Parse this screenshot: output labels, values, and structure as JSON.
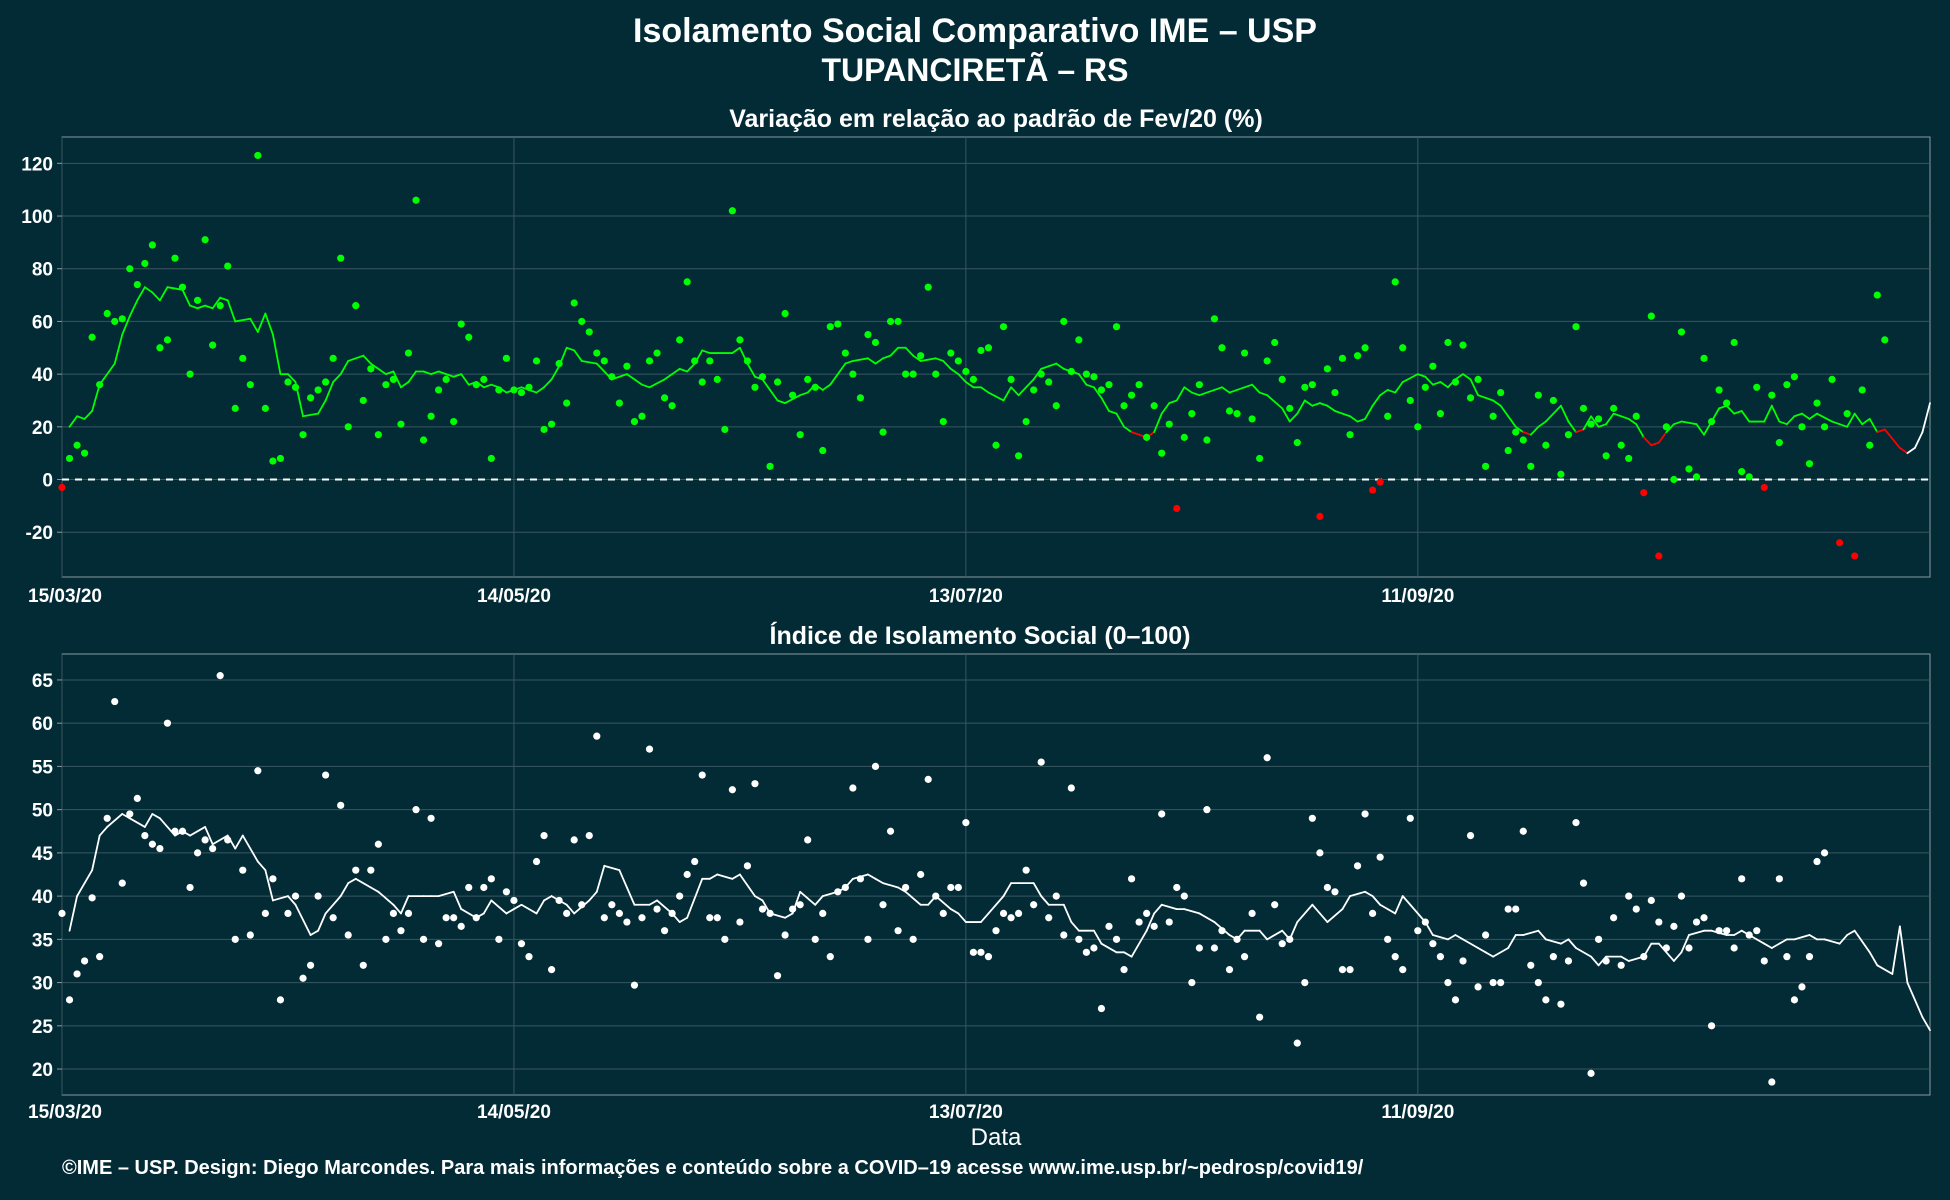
{
  "header": {
    "title": "Isolamento Social Comparativo IME – USP",
    "subtitle": "TUPANCIRETÃ – RS"
  },
  "footer": {
    "credit": "©IME – USP. Design: Diego Marcondes. Para mais informações e conteúdo sobre a COVID–19 acesse www.ime.usp.br/~pedrosp/covid19/"
  },
  "colors": {
    "background": "#022b36",
    "positive": "#00ff00",
    "negative": "#ff0000",
    "index": "#ffffff",
    "zero_line": "#ffffff",
    "frame": "#8a9aa0",
    "grid": "#3a5660"
  },
  "chart_data": [
    {
      "type": "scatter",
      "title": "Variação em relação ao padrão de Fev/20 (%)",
      "xlabel": "",
      "ylabel": "",
      "x_start": "15/03/20",
      "x_ticks": [
        "15/03/20",
        "14/05/20",
        "13/07/20",
        "11/09/20"
      ],
      "ylim": [
        -37,
        130
      ],
      "y_ticks": [
        -20,
        0,
        20,
        40,
        60,
        80,
        100,
        120
      ],
      "reference_line": 0,
      "grid": true,
      "series": [
        {
          "kind": "points",
          "color_rule": "green when >= 0, red when < 0",
          "values": [
            -3,
            8,
            13,
            10,
            54,
            36,
            63,
            60,
            61,
            80,
            74,
            82,
            89,
            50,
            53,
            84,
            73,
            40,
            68,
            91,
            51,
            66,
            81,
            27,
            46,
            36,
            123,
            27,
            7,
            8,
            37,
            35,
            17,
            31,
            34,
            37,
            46,
            84,
            20,
            66,
            30,
            42,
            17,
            36,
            38,
            21,
            48,
            106,
            15,
            24,
            34,
            38,
            22,
            59,
            54,
            36,
            38,
            8,
            34,
            46,
            34,
            33,
            35,
            45,
            19,
            21,
            44,
            29,
            67,
            60,
            56,
            48,
            45,
            39,
            29,
            43,
            22,
            24,
            45,
            48,
            31,
            28,
            53,
            75,
            45,
            37,
            45,
            38,
            19,
            102,
            53,
            45,
            35,
            39,
            5,
            37,
            63,
            32,
            17,
            38,
            35,
            11,
            58,
            59,
            48,
            40,
            31,
            55,
            52,
            18,
            60,
            60,
            40,
            40,
            47,
            73,
            40,
            22,
            48,
            45,
            41,
            38,
            49,
            50,
            13,
            58,
            38,
            9,
            22,
            34,
            40,
            37,
            28,
            60,
            41,
            53,
            40,
            39,
            34,
            36,
            58,
            28,
            32,
            36,
            16,
            28,
            10,
            21,
            -11,
            16,
            25,
            36,
            15,
            61,
            50,
            26,
            25,
            48,
            23,
            8,
            45,
            52,
            38,
            27,
            14,
            35,
            36,
            -14,
            42,
            33,
            46,
            17,
            47,
            50,
            -4,
            -1,
            24,
            75,
            50,
            30,
            20,
            35,
            43,
            25,
            52,
            37,
            51,
            31,
            38,
            5,
            24,
            33,
            11,
            18,
            15,
            5,
            32,
            13,
            30,
            2,
            17,
            58,
            27,
            21,
            23,
            9,
            27,
            13,
            8,
            24,
            -5,
            62,
            -29,
            20,
            0,
            56,
            4,
            1,
            46,
            22,
            34,
            29,
            52,
            3,
            1,
            35,
            -3,
            32,
            14,
            36,
            39,
            20,
            6,
            29,
            20,
            38,
            -24,
            25,
            -29,
            34,
            13,
            70,
            53
          ]
        },
        {
          "kind": "moving_average",
          "color_rule": "green when >= 20, red when < 20, white at the end",
          "values": [
            20,
            24,
            23,
            26,
            36,
            44,
            55,
            62,
            68,
            73,
            71,
            68,
            73,
            72,
            66,
            65,
            66,
            65,
            69,
            68,
            60,
            61,
            56,
            63,
            55,
            40,
            40,
            37,
            24,
            25,
            30,
            37,
            40,
            45,
            46,
            47,
            44,
            40,
            41,
            35,
            37,
            41,
            41,
            40,
            41,
            39,
            40,
            36,
            37,
            35,
            36,
            35,
            33,
            35,
            34,
            33,
            35,
            38,
            43,
            50,
            49,
            45,
            44,
            41,
            38,
            39,
            40,
            38,
            36,
            35,
            38,
            40,
            42,
            41,
            44,
            49,
            48,
            48,
            48,
            50,
            44,
            39,
            38,
            34,
            30,
            29,
            32,
            33,
            36,
            34,
            36,
            40,
            44,
            45,
            46,
            44,
            46,
            47,
            50,
            50,
            47,
            45,
            46,
            45,
            42,
            40,
            37,
            35,
            35,
            33,
            30,
            35,
            32,
            35,
            38,
            42,
            43,
            44,
            42,
            40,
            36,
            35,
            31,
            26,
            25,
            20,
            18,
            16,
            18,
            25,
            29,
            30,
            35,
            33,
            32,
            34,
            35,
            33,
            34,
            35,
            36,
            33,
            32,
            27,
            22,
            25,
            30,
            28,
            29,
            28,
            26,
            24,
            22,
            23,
            28,
            32,
            34,
            33,
            37,
            40,
            39,
            36,
            37,
            35,
            38,
            40,
            38,
            32,
            30,
            28,
            24,
            20,
            18,
            17,
            20,
            22,
            28,
            22,
            18,
            19,
            24,
            20,
            21,
            25,
            23,
            21,
            16,
            13,
            14,
            18,
            21,
            22,
            21,
            17,
            22,
            27,
            28,
            25,
            26,
            22,
            22,
            28,
            22,
            21,
            24,
            25,
            23,
            25,
            22,
            21,
            20,
            25,
            21,
            23,
            18,
            19,
            12,
            10,
            12,
            18,
            29
          ]
        }
      ]
    },
    {
      "type": "scatter",
      "title": "Índice de Isolamento Social (0–100)",
      "xlabel": "Data",
      "ylabel": "",
      "x_start": "15/03/20",
      "x_ticks": [
        "15/03/20",
        "14/05/20",
        "13/07/20",
        "11/09/20"
      ],
      "ylim": [
        17,
        68
      ],
      "y_ticks": [
        20,
        25,
        30,
        35,
        40,
        45,
        50,
        55,
        60,
        65
      ],
      "grid": true,
      "series": [
        {
          "kind": "points",
          "color": "white",
          "values": [
            38,
            28,
            31,
            32.5,
            39.8,
            33,
            49,
            62.5,
            41.5,
            49.5,
            51.3,
            47,
            46,
            45.5,
            60,
            47.5,
            47.5,
            41,
            45,
            46.5,
            45.5,
            65.5,
            46.5,
            35,
            43,
            35.5,
            54.5,
            38,
            42,
            28,
            38,
            40,
            30.5,
            32,
            40,
            54,
            37.5,
            50.5,
            35.5,
            43,
            32,
            43,
            46,
            35,
            38,
            36,
            38,
            50,
            35,
            49,
            34.5,
            37.5,
            37.5,
            36.5,
            41,
            37.5,
            41,
            42,
            35,
            40.5,
            39.5,
            34.5,
            33,
            44,
            47,
            31.5,
            39.5,
            38,
            46.5,
            39,
            47,
            58.5,
            37.5,
            39,
            38,
            37,
            29.7,
            37.5,
            57,
            38.5,
            36,
            38,
            40,
            42.5,
            44,
            54,
            37.5,
            37.5,
            35,
            52.3,
            37,
            43.5,
            53,
            38.5,
            38,
            30.8,
            35.5,
            38.5,
            39,
            46.5,
            35,
            38,
            33,
            40.5,
            41,
            52.5,
            42,
            35,
            55,
            39,
            47.5,
            36,
            41,
            35,
            42.5,
            53.5,
            40,
            38,
            41,
            41,
            48.5,
            33.5,
            33.5,
            33,
            36,
            38,
            37.5,
            38,
            43,
            39,
            55.5,
            37.5,
            40,
            35.5,
            52.5,
            35,
            33.5,
            34,
            27,
            36.5,
            35,
            31.5,
            42,
            37,
            38,
            36.5,
            49.5,
            37,
            41,
            40,
            30,
            34,
            50,
            34,
            36,
            31.5,
            35,
            33,
            38,
            26,
            56,
            39,
            34.5,
            35,
            23,
            30,
            49,
            45,
            41,
            40.5,
            31.5,
            31.5,
            43.5,
            49.5,
            38,
            44.5,
            35,
            33,
            31.5,
            49,
            36,
            37,
            34.5,
            33,
            30,
            28,
            32.5,
            47,
            29.5,
            35.5,
            30,
            30,
            38.5,
            38.5,
            47.5,
            32,
            30,
            28,
            33,
            27.5,
            32.5,
            48.5,
            41.5,
            19.5,
            35,
            32.5,
            37.5,
            32,
            40,
            38.5,
            33,
            39.5,
            37,
            34,
            36.5,
            40,
            34,
            37,
            37.5,
            25,
            36,
            36,
            34,
            42,
            35.5,
            36,
            32.5,
            18.5,
            42,
            33,
            28,
            29.5,
            33,
            44,
            45
          ]
        },
        {
          "kind": "moving_average",
          "color": "white",
          "values": [
            36,
            40,
            43,
            47,
            48,
            49.5,
            49,
            48,
            49.5,
            49,
            47,
            47.5,
            47,
            48,
            46,
            47,
            45.5,
            47,
            44,
            43,
            39.5,
            40,
            39,
            35.5,
            36,
            38,
            40,
            41.5,
            42,
            41,
            40.5,
            39,
            38,
            40,
            40,
            40,
            40,
            40.5,
            38.5,
            37.5,
            38,
            39.5,
            38,
            38.5,
            39,
            38,
            39.5,
            40,
            39,
            38,
            39.5,
            40.5,
            43.5,
            43,
            41,
            39,
            39,
            39.5,
            38,
            37,
            37.5,
            42,
            42,
            42.5,
            42,
            42.5,
            40,
            39.5,
            38,
            37.5,
            38,
            40.5,
            39,
            40,
            40.5,
            41,
            42,
            42.5,
            42,
            41.5,
            41,
            40.5,
            39,
            39,
            40,
            38.5,
            38,
            37,
            37,
            38,
            40,
            41.5,
            41.5,
            41.5,
            40,
            39,
            39,
            37,
            36,
            36,
            34.5,
            33.5,
            33.5,
            33,
            36,
            38,
            39,
            38.5,
            38.5,
            38,
            37.5,
            37,
            35.5,
            35,
            36,
            36,
            35,
            36,
            35,
            37,
            39,
            38,
            37,
            38.5,
            40,
            40.5,
            40,
            39,
            38,
            40,
            39,
            37,
            35.5,
            35,
            35.5,
            35,
            34,
            33.5,
            33,
            34,
            35.5,
            35.5,
            36,
            35,
            34.5,
            35,
            34,
            33,
            32,
            33,
            33,
            32.5,
            33,
            34.5,
            34.5,
            32.5,
            33.5,
            35.5,
            36,
            36,
            35.5,
            35.5,
            36,
            35,
            34.5,
            34,
            35,
            35,
            35.5,
            35,
            35,
            34.5,
            35.5,
            36,
            33.5,
            32,
            31,
            36.5,
            30,
            26,
            24.5
          ]
        }
      ]
    }
  ]
}
